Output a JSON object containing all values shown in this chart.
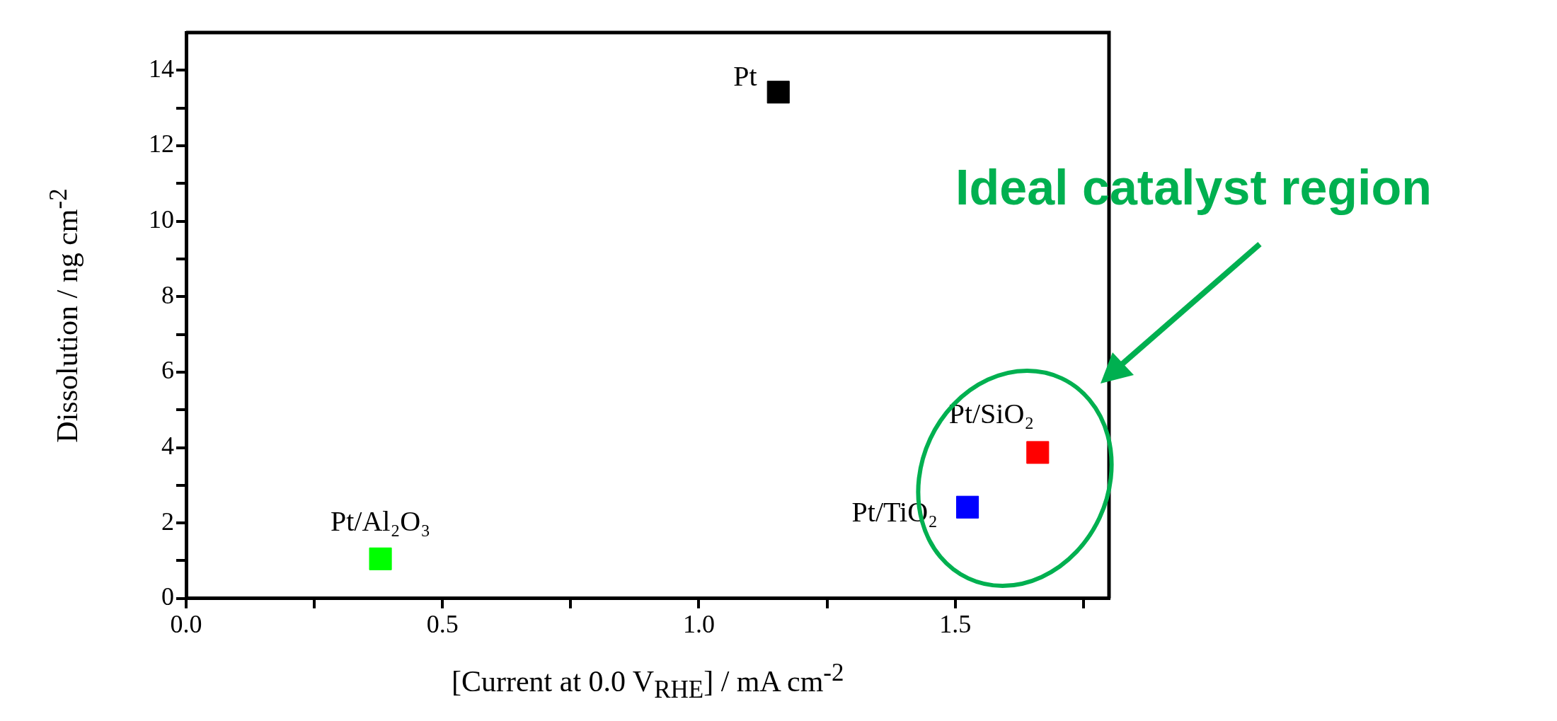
{
  "chart_data": {
    "type": "scatter",
    "xlabel": "[Current at 0.0 V$_{RHE}$] / mA cm$^{-2}$",
    "ylabel": "Dissolution / ng cm$^{-2}$",
    "marker": "square",
    "xlim": [
      0,
      1.8
    ],
    "ylim": [
      0,
      15
    ],
    "xticks": [
      {
        "value": 0,
        "label": "0.0"
      },
      {
        "value": 0.25,
        "label": null
      },
      0.5,
      {
        "value": 0.75,
        "label": null
      },
      {
        "value": 1,
        "label": "1.0"
      },
      {
        "value": 1.25,
        "label": null
      },
      1.5,
      {
        "value": 1.75,
        "label": null
      }
    ],
    "yticks": [
      0,
      {
        "value": 1,
        "label": null
      },
      2,
      {
        "value": 3,
        "label": null
      },
      4,
      {
        "value": 5,
        "label": null
      },
      6,
      {
        "value": 7,
        "label": null
      },
      8,
      {
        "value": 9,
        "label": null
      },
      10,
      {
        "value": 11,
        "label": null
      },
      12,
      {
        "value": 13,
        "label": null
      },
      14
    ],
    "series": [
      {
        "name": "Pt",
        "color": "#000000",
        "x": [
          1.155
        ],
        "values": [
          13.42
        ]
      },
      {
        "name": "Pt/SiO₂",
        "color": "#ff0000",
        "x": [
          1.661
        ],
        "values": [
          3.87
        ]
      },
      {
        "name": "Pt/TiO₂",
        "color": "#0000ff",
        "x": [
          1.524
        ],
        "values": [
          2.42
        ]
      },
      {
        "name": "Pt/Al₂O₃",
        "color": "#00ff00",
        "x": [
          0.379
        ],
        "values": [
          1.05
        ]
      }
    ],
    "annotations": [
      "Ideal catalyst region"
    ]
  }
}
